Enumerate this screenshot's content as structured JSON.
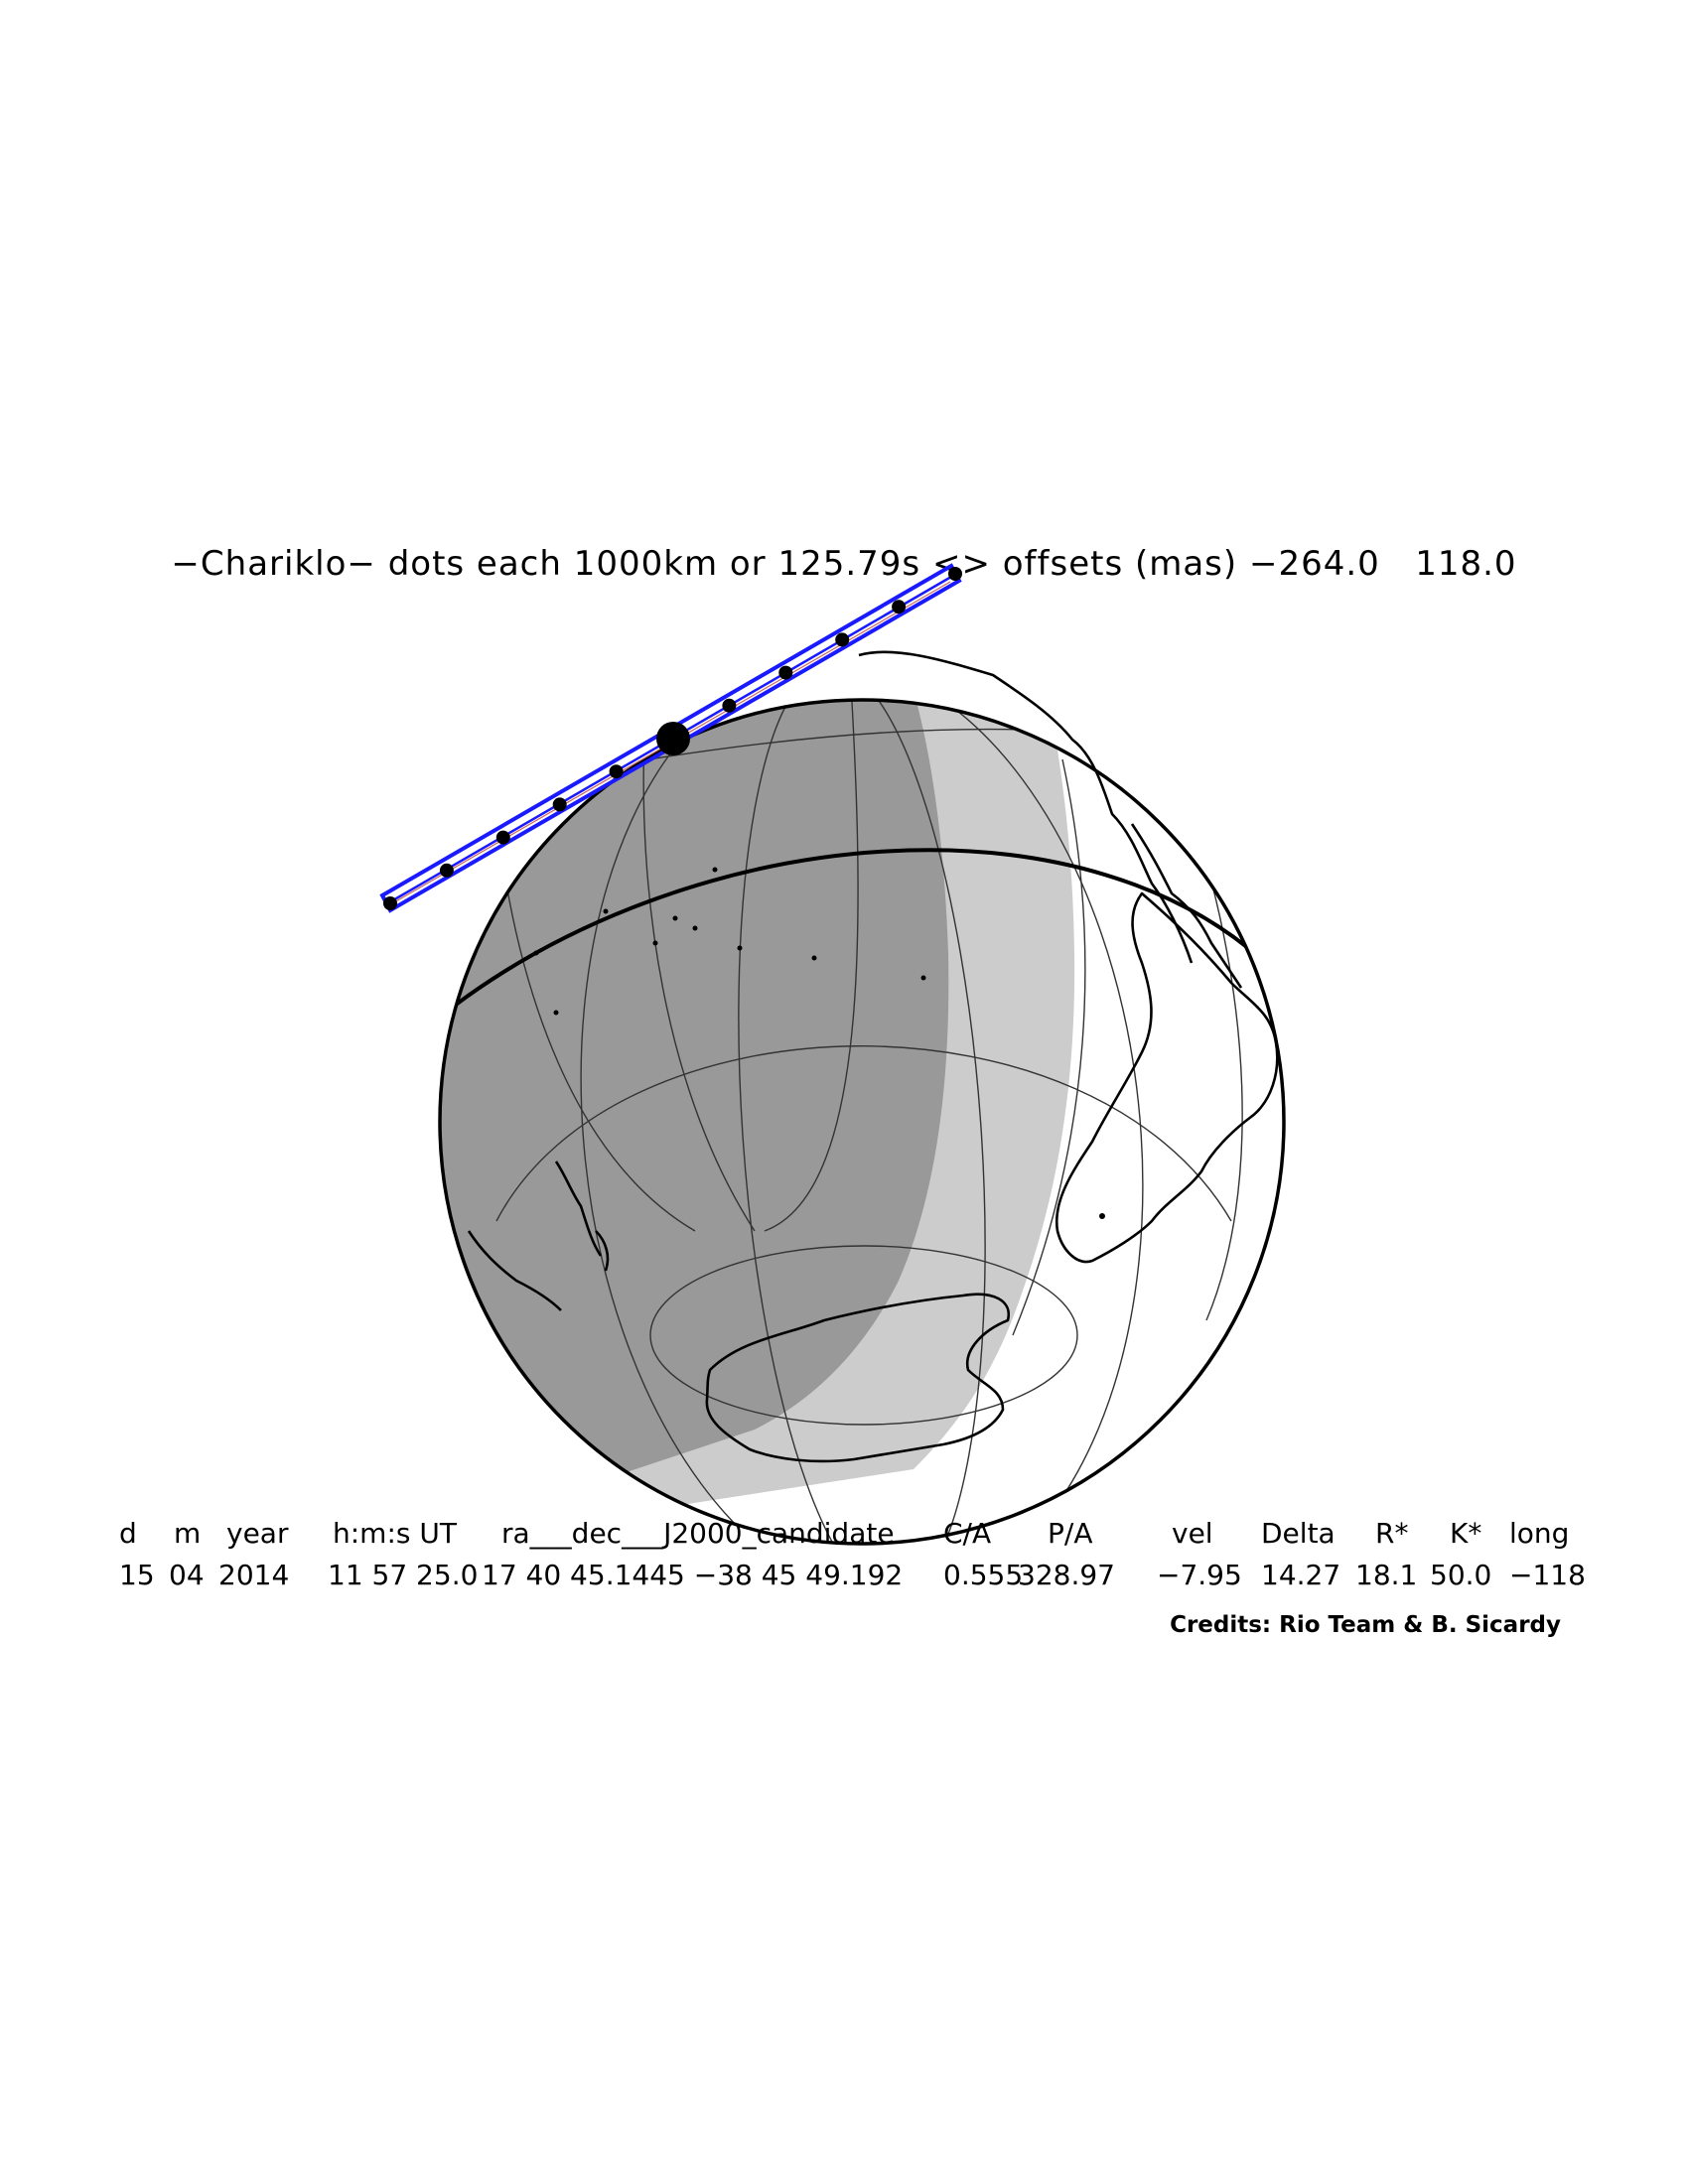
{
  "title": "−Chariklo− dots each 1000km or 125.79s <> offsets (mas) −264.0   118.0",
  "table": {
    "headers": [
      "d",
      "m",
      "year",
      "h:m:s UT",
      "ra___dec___J2000_candidate",
      "C/A",
      "P/A",
      "vel",
      "Delta",
      "R*",
      "K*",
      "long"
    ],
    "values": [
      "15",
      "04",
      "2014",
      "11 57 25.0",
      "17 40 45.1445 −38 45 49.192",
      "0.555",
      "328.97",
      "−7.95",
      "14.27",
      "18.1",
      "50.0",
      "−118"
    ]
  },
  "credits": "Credits: Rio Team & B. Sicardy",
  "colors": {
    "night": "#999999",
    "twilight": "#cccccc",
    "day": "#ffffff",
    "path": "#1a1aff",
    "outline": "#000000"
  },
  "path_dots_count": 11
}
